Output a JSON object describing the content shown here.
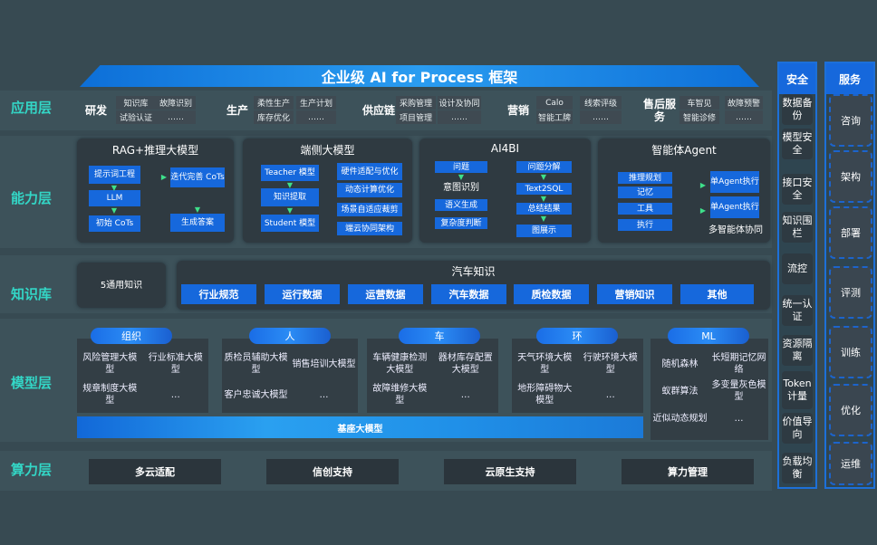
{
  "title": "企业级 AI for Process 框架",
  "layers": {
    "app": "应用层",
    "capability": "能力层",
    "knowledge": "知识库",
    "model": "模型层",
    "compute": "算力层"
  },
  "app_groups": [
    {
      "name": "研发",
      "items": [
        "知识库",
        "故障识别",
        "试验认证",
        "……"
      ]
    },
    {
      "name": "生产",
      "items": [
        "柔性生产",
        "生产计划",
        "库存优化",
        "……"
      ]
    },
    {
      "name": "供应链",
      "items": [
        "采购管理",
        "设计及协同",
        "项目管理",
        "……"
      ]
    },
    {
      "name": "营销",
      "items": [
        "Calo",
        "线索评级",
        "智能工牌",
        "……"
      ]
    },
    {
      "name": "售后服务",
      "items": [
        "车智见",
        "故障预警",
        "智能诊修",
        "……"
      ]
    }
  ],
  "capability": [
    {
      "title": "RAG+推理大模型",
      "boxes": [
        "提示词工程",
        "LLM",
        "初始 CoTs",
        "迭代完善 CoTs",
        "生成答案"
      ]
    },
    {
      "title": "端侧大模型",
      "boxes": [
        "Teacher 模型",
        "知识提取",
        "Student 模型",
        "硬件适配与优化",
        "动态计算优化",
        "场景自适应裁剪",
        "端云协同架构"
      ]
    },
    {
      "title": "AI4BI",
      "boxes": [
        "问题",
        "语义生成",
        "复杂度判断",
        "问题分解",
        "Text2SQL",
        "总结结果",
        "图展示"
      ],
      "texts": [
        "意图识别"
      ]
    },
    {
      "title": "智能体Agent",
      "boxes": [
        "推理规划",
        "记忆",
        "工具",
        "执行",
        "单Agent执行",
        "单Agent执行"
      ],
      "texts": [
        "多智能体协同"
      ]
    }
  ],
  "knowledge": {
    "general": "5通用知识",
    "auto_title": "汽车知识",
    "items": [
      "行业规范",
      "运行数据",
      "运营数据",
      "汽车数据",
      "质检数据",
      "营销知识",
      "其他"
    ]
  },
  "model": {
    "groups": [
      {
        "name": "组织",
        "items": [
          "风险管理大模型",
          "行业标准大模型",
          "规章制度大模型",
          "…"
        ]
      },
      {
        "name": "人",
        "items": [
          "质检员辅助大模型",
          "销售培训大模型",
          "客户忠诚大模型",
          "…"
        ]
      },
      {
        "name": "车",
        "items": [
          "车辆健康检测大模型",
          "器材库存配置大模型",
          "故障维修大模型",
          "…"
        ]
      },
      {
        "name": "环",
        "items": [
          "天气环境大模型",
          "行驶环境大模型",
          "地形障碍物大模型",
          "…"
        ]
      },
      {
        "name": "ML",
        "items": [
          "随机森林",
          "长短期记忆网络",
          "蚁群算法",
          "多变量灰色模型",
          "近似动态规划",
          "…"
        ]
      }
    ],
    "base": "基座大模型"
  },
  "compute": [
    "多云适配",
    "信创支持",
    "云原生支持",
    "算力管理"
  ],
  "security": {
    "title": "安全",
    "items": [
      "数据备份",
      "模型安全",
      "接口安全",
      "知识围栏",
      "流控",
      "统一认证",
      "资源隔离",
      "Token计量",
      "价值导向",
      "负载均衡"
    ]
  },
  "services": {
    "title": "服务",
    "items": [
      "咨询",
      "架构",
      "部署",
      "评测",
      "训练",
      "优化",
      "运维"
    ]
  }
}
